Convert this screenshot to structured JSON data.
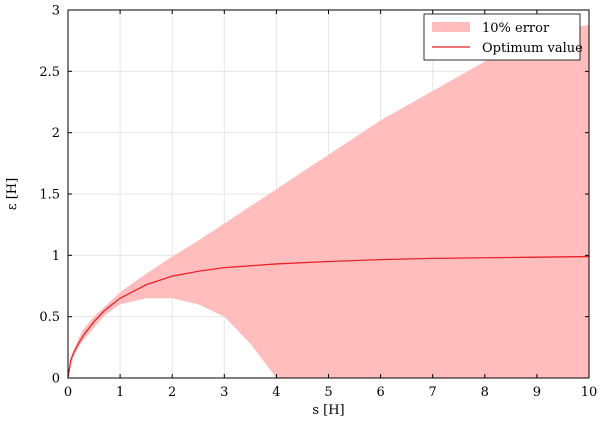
{
  "chart_data": {
    "type": "area",
    "title": "",
    "xlabel": "s [H]",
    "ylabel": "ε [H]",
    "xlim": [
      0,
      10
    ],
    "ylim": [
      0,
      3
    ],
    "xticks": [
      0,
      1,
      2,
      3,
      4,
      5,
      6,
      7,
      8,
      9,
      10
    ],
    "yticks": [
      0,
      0.5,
      1,
      1.5,
      2,
      2.5,
      3
    ],
    "ytick_labels": [
      "0",
      "0.5",
      "1",
      "1.5",
      "2",
      "2.5",
      "3"
    ],
    "grid": true,
    "legend_position": "top-right",
    "colors": {
      "band": "#ffbdbd",
      "line": "#e8232b",
      "grid": "#e6e6e6"
    },
    "series": [
      {
        "name": "10% error",
        "kind": "band",
        "x": [
          0,
          0.1,
          0.2,
          0.3,
          0.5,
          0.7,
          1,
          1.5,
          2,
          2.5,
          3,
          3.5,
          4,
          5,
          6,
          7,
          8,
          9,
          10
        ],
        "upper": [
          0,
          0.22,
          0.32,
          0.4,
          0.5,
          0.58,
          0.7,
          0.85,
          0.99,
          1.12,
          1.26,
          1.4,
          1.54,
          1.82,
          2.1,
          2.34,
          2.58,
          2.8,
          2.88
        ],
        "lower": [
          0,
          0.16,
          0.25,
          0.31,
          0.41,
          0.51,
          0.6,
          0.65,
          0.65,
          0.6,
          0.5,
          0.28,
          0,
          0,
          0,
          0,
          0,
          0,
          0
        ]
      },
      {
        "name": "Optimum value",
        "kind": "line",
        "x": [
          0,
          0.05,
          0.1,
          0.2,
          0.3,
          0.5,
          0.7,
          1,
          1.5,
          2,
          2.5,
          3,
          4,
          5,
          6,
          7,
          8,
          9,
          10
        ],
        "y": [
          0,
          0.14,
          0.2,
          0.28,
          0.35,
          0.46,
          0.55,
          0.65,
          0.76,
          0.83,
          0.87,
          0.9,
          0.93,
          0.95,
          0.965,
          0.975,
          0.98,
          0.985,
          0.99
        ]
      }
    ]
  }
}
